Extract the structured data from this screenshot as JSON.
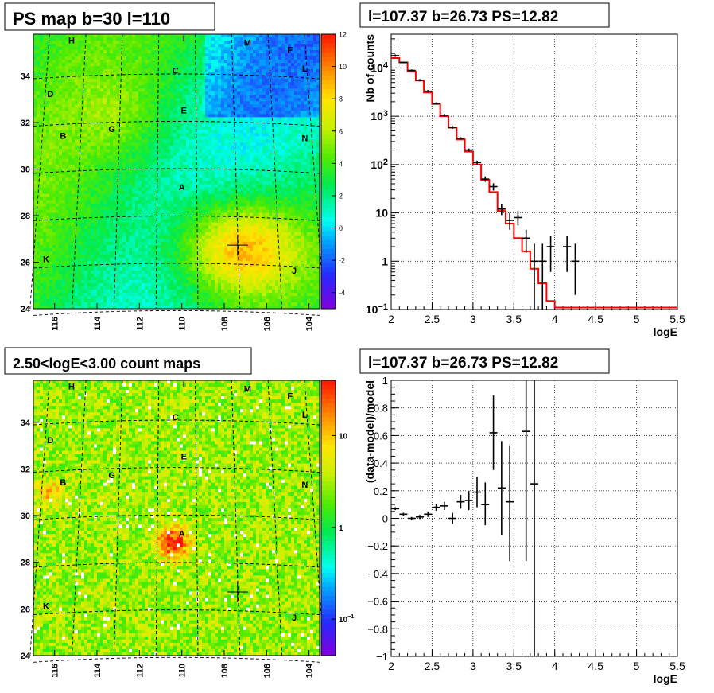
{
  "chart_data": [
    {
      "type": "heatmap",
      "title": "PS map b=30 l=110",
      "xlim": [
        117,
        103.5
      ],
      "ylim": [
        24,
        35.8
      ],
      "x_ticks": [
        "116",
        "114",
        "112",
        "110",
        "108",
        "106",
        "104"
      ],
      "y_ticks": [
        "24",
        "26",
        "28",
        "30",
        "32",
        "34"
      ],
      "colorbar_ticks": [
        "-4",
        "-2",
        "0",
        "2",
        "4",
        "6",
        "8",
        "10",
        "12"
      ],
      "colorbar_range": [
        -5,
        12
      ],
      "marker": [
        107.37,
        26.73
      ],
      "labels": [
        {
          "text": "H",
          "l": 115.2,
          "b": 35.4
        },
        {
          "text": "I",
          "l": 109.9,
          "b": 35.5
        },
        {
          "text": "M",
          "l": 106.9,
          "b": 35.3
        },
        {
          "text": "F",
          "l": 104.9,
          "b": 35.0
        },
        {
          "text": "L",
          "l": 104.2,
          "b": 34.2
        },
        {
          "text": "C",
          "l": 110.3,
          "b": 34.1
        },
        {
          "text": "D",
          "l": 116.2,
          "b": 33.1
        },
        {
          "text": "E",
          "l": 109.9,
          "b": 32.4
        },
        {
          "text": "G",
          "l": 113.3,
          "b": 31.6
        },
        {
          "text": "B",
          "l": 115.6,
          "b": 31.3
        },
        {
          "text": "N",
          "l": 104.2,
          "b": 31.2
        },
        {
          "text": "A",
          "l": 110.0,
          "b": 29.1
        },
        {
          "text": "K",
          "l": 116.4,
          "b": 26.0
        },
        {
          "text": "J",
          "l": 104.7,
          "b": 25.5
        }
      ]
    },
    {
      "type": "line",
      "title": "l=107.37 b=26.73 PS=12.82",
      "xlabel": "logE",
      "ylabel": "Nb of counts",
      "xlim": [
        2,
        5.5
      ],
      "ylim": [
        0.1,
        50000
      ],
      "y_scale": "log",
      "x_ticks": [
        "2",
        "2.5",
        "3",
        "3.5",
        "4",
        "4.5",
        "5",
        "5.5"
      ],
      "y_ticks": [
        {
          "v": 0.1,
          "base": "10",
          "exp": "−1"
        },
        {
          "v": 1,
          "base": "1",
          "exp": ""
        },
        {
          "v": 10,
          "base": "10",
          "exp": ""
        },
        {
          "v": 100,
          "base": "10",
          "exp": "2"
        },
        {
          "v": 1000,
          "base": "10",
          "exp": "3"
        },
        {
          "v": 10000,
          "base": "10",
          "exp": "4"
        }
      ],
      "model_color": "#ff0000",
      "model": [
        {
          "x0": 2.0,
          "x1": 2.1,
          "y": 16000
        },
        {
          "x0": 2.1,
          "x1": 2.2,
          "y": 13000
        },
        {
          "x0": 2.2,
          "x1": 2.3,
          "y": 8500
        },
        {
          "x0": 2.3,
          "x1": 2.4,
          "y": 5500
        },
        {
          "x0": 2.4,
          "x1": 2.5,
          "y": 3100
        },
        {
          "x0": 2.5,
          "x1": 2.6,
          "y": 1800
        },
        {
          "x0": 2.6,
          "x1": 2.7,
          "y": 1000
        },
        {
          "x0": 2.7,
          "x1": 2.8,
          "y": 580
        },
        {
          "x0": 2.8,
          "x1": 2.9,
          "y": 330
        },
        {
          "x0": 2.9,
          "x1": 3.0,
          "y": 185
        },
        {
          "x0": 3.0,
          "x1": 3.1,
          "y": 100
        },
        {
          "x0": 3.1,
          "x1": 3.2,
          "y": 48
        },
        {
          "x0": 3.2,
          "x1": 3.3,
          "y": 27
        },
        {
          "x0": 3.3,
          "x1": 3.4,
          "y": 11
        },
        {
          "x0": 3.4,
          "x1": 3.5,
          "y": 6
        },
        {
          "x0": 3.5,
          "x1": 3.6,
          "y": 3
        },
        {
          "x0": 3.6,
          "x1": 3.7,
          "y": 1.6
        },
        {
          "x0": 3.7,
          "x1": 3.8,
          "y": 0.7
        },
        {
          "x0": 3.8,
          "x1": 3.9,
          "y": 0.35
        },
        {
          "x0": 3.9,
          "x1": 4.0,
          "y": 0.15
        },
        {
          "x0": 4.0,
          "x1": 5.5,
          "y": 0.11
        }
      ],
      "points": [
        {
          "x": 2.05,
          "y": 18000,
          "lo": 17000,
          "hi": 19000
        },
        {
          "x": 2.15,
          "y": 13000,
          "lo": 12500,
          "hi": 13500
        },
        {
          "x": 2.25,
          "y": 8900,
          "lo": 8500,
          "hi": 9300
        },
        {
          "x": 2.35,
          "y": 5600,
          "lo": 5300,
          "hi": 5900
        },
        {
          "x": 2.45,
          "y": 3300,
          "lo": 3100,
          "hi": 3500
        },
        {
          "x": 2.55,
          "y": 1850,
          "lo": 1750,
          "hi": 1950
        },
        {
          "x": 2.65,
          "y": 1050,
          "lo": 980,
          "hi": 1120
        },
        {
          "x": 2.75,
          "y": 590,
          "lo": 550,
          "hi": 630
        },
        {
          "x": 2.85,
          "y": 350,
          "lo": 330,
          "hi": 370
        },
        {
          "x": 2.95,
          "y": 200,
          "lo": 185,
          "hi": 215
        },
        {
          "x": 3.05,
          "y": 110,
          "lo": 100,
          "hi": 121
        },
        {
          "x": 3.15,
          "y": 50,
          "lo": 44,
          "hi": 57
        },
        {
          "x": 3.25,
          "y": 35,
          "lo": 29,
          "hi": 41
        },
        {
          "x": 3.35,
          "y": 12,
          "lo": 9,
          "hi": 15.5
        },
        {
          "x": 3.45,
          "y": 7,
          "lo": 4.5,
          "hi": 10
        },
        {
          "x": 3.55,
          "y": 8,
          "lo": 5.5,
          "hi": 11
        },
        {
          "x": 3.65,
          "y": 3,
          "lo": 1.5,
          "hi": 4.5
        },
        {
          "x": 3.75,
          "y": 1,
          "lo": 0.1,
          "hi": 2.3
        },
        {
          "x": 3.85,
          "y": 1,
          "lo": 0.1,
          "hi": 2.3
        },
        {
          "x": 3.95,
          "y": 2,
          "lo": 0.6,
          "hi": 3.4
        },
        {
          "x": 4.15,
          "y": 2,
          "lo": 0.6,
          "hi": 3.4
        },
        {
          "x": 4.25,
          "y": 1,
          "lo": 0.2,
          "hi": 2.3
        }
      ]
    },
    {
      "type": "heatmap",
      "title": "2.50<logE<3.00 count maps",
      "xlim": [
        117,
        103.5
      ],
      "ylim": [
        24,
        35.8
      ],
      "x_ticks": [
        "116",
        "114",
        "112",
        "110",
        "108",
        "106",
        "104"
      ],
      "y_ticks": [
        "24",
        "26",
        "28",
        "30",
        "32",
        "34"
      ],
      "colorbar_ticks": [
        {
          "base": "10",
          "exp": "",
          "v": 10
        },
        {
          "base": "1",
          "exp": "",
          "v": 1
        },
        {
          "base": "10",
          "exp": "−1",
          "v": 0.1
        }
      ],
      "colorbar_range": [
        0.04,
        40
      ],
      "marker": [
        107.37,
        26.73
      ],
      "labels": [
        {
          "text": "H",
          "l": 115.2,
          "b": 35.4
        },
        {
          "text": "I",
          "l": 109.9,
          "b": 35.5
        },
        {
          "text": "M",
          "l": 106.9,
          "b": 35.3
        },
        {
          "text": "F",
          "l": 104.9,
          "b": 35.0
        },
        {
          "text": "L",
          "l": 104.2,
          "b": 34.2
        },
        {
          "text": "C",
          "l": 110.3,
          "b": 34.1
        },
        {
          "text": "D",
          "l": 116.2,
          "b": 33.1
        },
        {
          "text": "E",
          "l": 109.9,
          "b": 32.4
        },
        {
          "text": "G",
          "l": 113.3,
          "b": 31.6
        },
        {
          "text": "B",
          "l": 115.6,
          "b": 31.3
        },
        {
          "text": "N",
          "l": 104.2,
          "b": 31.2
        },
        {
          "text": "A",
          "l": 110.0,
          "b": 29.1
        },
        {
          "text": "K",
          "l": 116.4,
          "b": 26.0
        },
        {
          "text": "J",
          "l": 104.7,
          "b": 25.5
        }
      ]
    },
    {
      "type": "scatter",
      "title": "l=107.37 b=26.73 PS=12.82",
      "xlabel": "logE",
      "ylabel": "(data-model)/model",
      "xlim": [
        2,
        5.5
      ],
      "ylim": [
        -1,
        1
      ],
      "x_ticks": [
        "2",
        "2.5",
        "3",
        "3.5",
        "4",
        "4.5",
        "5",
        "5.5"
      ],
      "y_ticks": [
        "−1",
        "−0.8",
        "−0.6",
        "−0.4",
        "−0.2",
        "0",
        "0.2",
        "0.4",
        "0.6",
        "0.8",
        "1"
      ],
      "points": [
        {
          "x": 2.05,
          "y": 0.07,
          "lo": 0.06,
          "hi": 0.08
        },
        {
          "x": 2.15,
          "y": 0.03,
          "lo": 0.02,
          "hi": 0.04
        },
        {
          "x": 2.25,
          "y": 0.0,
          "lo": -0.01,
          "hi": 0.01
        },
        {
          "x": 2.35,
          "y": 0.01,
          "lo": -0.005,
          "hi": 0.025
        },
        {
          "x": 2.45,
          "y": 0.03,
          "lo": 0.01,
          "hi": 0.05
        },
        {
          "x": 2.55,
          "y": 0.08,
          "lo": 0.055,
          "hi": 0.105
        },
        {
          "x": 2.65,
          "y": 0.09,
          "lo": 0.06,
          "hi": 0.12
        },
        {
          "x": 2.75,
          "y": 0.0,
          "lo": -0.04,
          "hi": 0.04
        },
        {
          "x": 2.85,
          "y": 0.12,
          "lo": 0.07,
          "hi": 0.17
        },
        {
          "x": 2.95,
          "y": 0.13,
          "lo": 0.06,
          "hi": 0.2
        },
        {
          "x": 3.05,
          "y": 0.19,
          "lo": 0.08,
          "hi": 0.3
        },
        {
          "x": 3.15,
          "y": 0.1,
          "lo": -0.05,
          "hi": 0.26
        },
        {
          "x": 3.25,
          "y": 0.62,
          "lo": 0.35,
          "hi": 0.89
        },
        {
          "x": 3.35,
          "y": 0.22,
          "lo": -0.12,
          "hi": 0.56
        },
        {
          "x": 3.45,
          "y": 0.12,
          "lo": -0.31,
          "hi": 0.53
        },
        {
          "x": 3.65,
          "y": 0.63,
          "lo": -0.31,
          "hi": 1.0
        },
        {
          "x": 3.75,
          "y": 0.25,
          "lo": -1.0,
          "hi": 1.0
        }
      ]
    }
  ]
}
